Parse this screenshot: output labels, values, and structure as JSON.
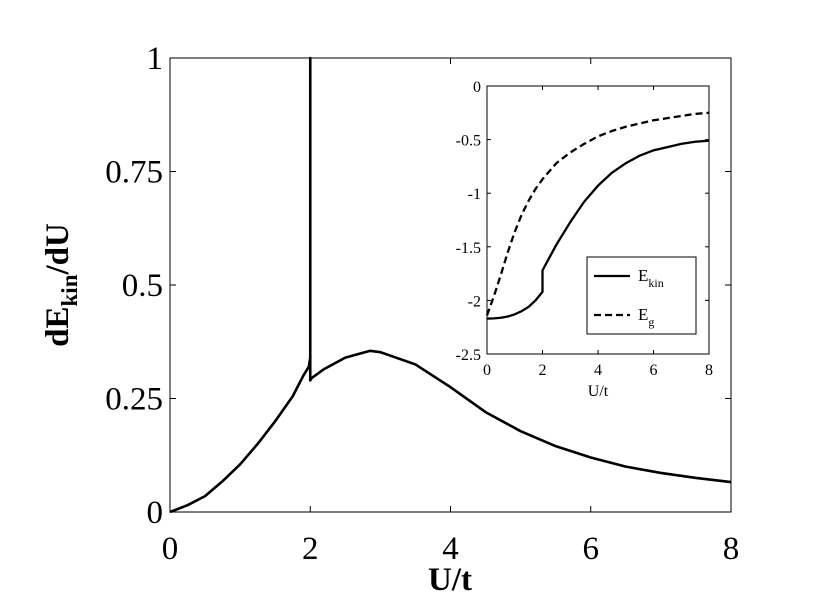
{
  "chart_data": [
    {
      "type": "line",
      "xlabel": "U/t",
      "ylabel_main": "dE",
      "ylabel_sub": "kin",
      "ylabel_suffix": "/dU",
      "xlim": [
        0,
        8
      ],
      "ylim": [
        0,
        1
      ],
      "x_ticks": [
        {
          "value": 0,
          "label": "0"
        },
        {
          "value": 2,
          "label": "2"
        },
        {
          "value": 4,
          "label": "4"
        },
        {
          "value": 6,
          "label": "6"
        },
        {
          "value": 8,
          "label": "8"
        }
      ],
      "y_ticks": [
        {
          "value": 0,
          "label": "0"
        },
        {
          "value": 0.25,
          "label": "0.25"
        },
        {
          "value": 0.5,
          "label": "0.5"
        },
        {
          "value": 0.75,
          "label": "0.75"
        },
        {
          "value": 1,
          "label": "1"
        }
      ],
      "grid": false,
      "series": [
        {
          "x": [
            0,
            0.25,
            0.5,
            0.75,
            1.0,
            1.25,
            1.5,
            1.75,
            1.9,
            1.98,
            2.0,
            2.0,
            2.0,
            2.02,
            2.2,
            2.5,
            2.85,
            3.0,
            3.5,
            4.0,
            4.5,
            5.0,
            5.5,
            6.0,
            6.5,
            7.0,
            7.5,
            8.0
          ],
          "y": [
            0,
            0.015,
            0.035,
            0.068,
            0.105,
            0.15,
            0.2,
            0.255,
            0.3,
            0.32,
            0.34,
            1.0,
            0.29,
            0.295,
            0.315,
            0.34,
            0.355,
            0.352,
            0.325,
            0.275,
            0.22,
            0.178,
            0.145,
            0.12,
            0.1,
            0.086,
            0.075,
            0.066
          ]
        }
      ]
    },
    {
      "type": "line",
      "xlabel": "U/t",
      "xlim": [
        0,
        8
      ],
      "ylim": [
        -2.5,
        0
      ],
      "x_ticks": [
        {
          "value": 0,
          "label": "0"
        },
        {
          "value": 2,
          "label": "2"
        },
        {
          "value": 4,
          "label": "4"
        },
        {
          "value": 6,
          "label": "6"
        },
        {
          "value": 8,
          "label": "8"
        }
      ],
      "y_ticks": [
        {
          "value": 0,
          "label": "0"
        },
        {
          "value": -0.5,
          "label": "-0.5"
        },
        {
          "value": -1,
          "label": "-1"
        },
        {
          "value": -1.5,
          "label": "-1.5"
        },
        {
          "value": -2,
          "label": "-2"
        },
        {
          "value": -2.5,
          "label": "-2.5"
        }
      ],
      "grid": false,
      "legend_position": "lower-right",
      "series": [
        {
          "name_main": "E",
          "name_sub": "kin",
          "style": "solid",
          "x": [
            0,
            0.25,
            0.5,
            0.75,
            1.0,
            1.25,
            1.5,
            1.75,
            2.0,
            2.0,
            2.5,
            3.0,
            3.5,
            4.0,
            4.5,
            5.0,
            5.5,
            6.0,
            6.5,
            7.0,
            7.5,
            8.0
          ],
          "y": [
            -2.17,
            -2.168,
            -2.162,
            -2.15,
            -2.13,
            -2.1,
            -2.06,
            -2.0,
            -1.92,
            -1.72,
            -1.48,
            -1.27,
            -1.08,
            -0.93,
            -0.81,
            -0.72,
            -0.65,
            -0.6,
            -0.57,
            -0.54,
            -0.52,
            -0.51
          ]
        },
        {
          "name_main": "E",
          "name_sub": "g",
          "style": "dashed",
          "x": [
            0,
            0.25,
            0.5,
            0.75,
            1.0,
            1.25,
            1.5,
            1.75,
            2.0,
            2.5,
            3.0,
            3.5,
            4.0,
            4.5,
            5.0,
            5.5,
            6.0,
            6.5,
            7.0,
            7.5,
            8.0
          ],
          "y": [
            -2.14,
            -1.96,
            -1.76,
            -1.55,
            -1.36,
            -1.2,
            -1.07,
            -0.96,
            -0.87,
            -0.72,
            -0.62,
            -0.54,
            -0.47,
            -0.42,
            -0.38,
            -0.35,
            -0.32,
            -0.3,
            -0.28,
            -0.26,
            -0.25
          ]
        }
      ]
    }
  ]
}
